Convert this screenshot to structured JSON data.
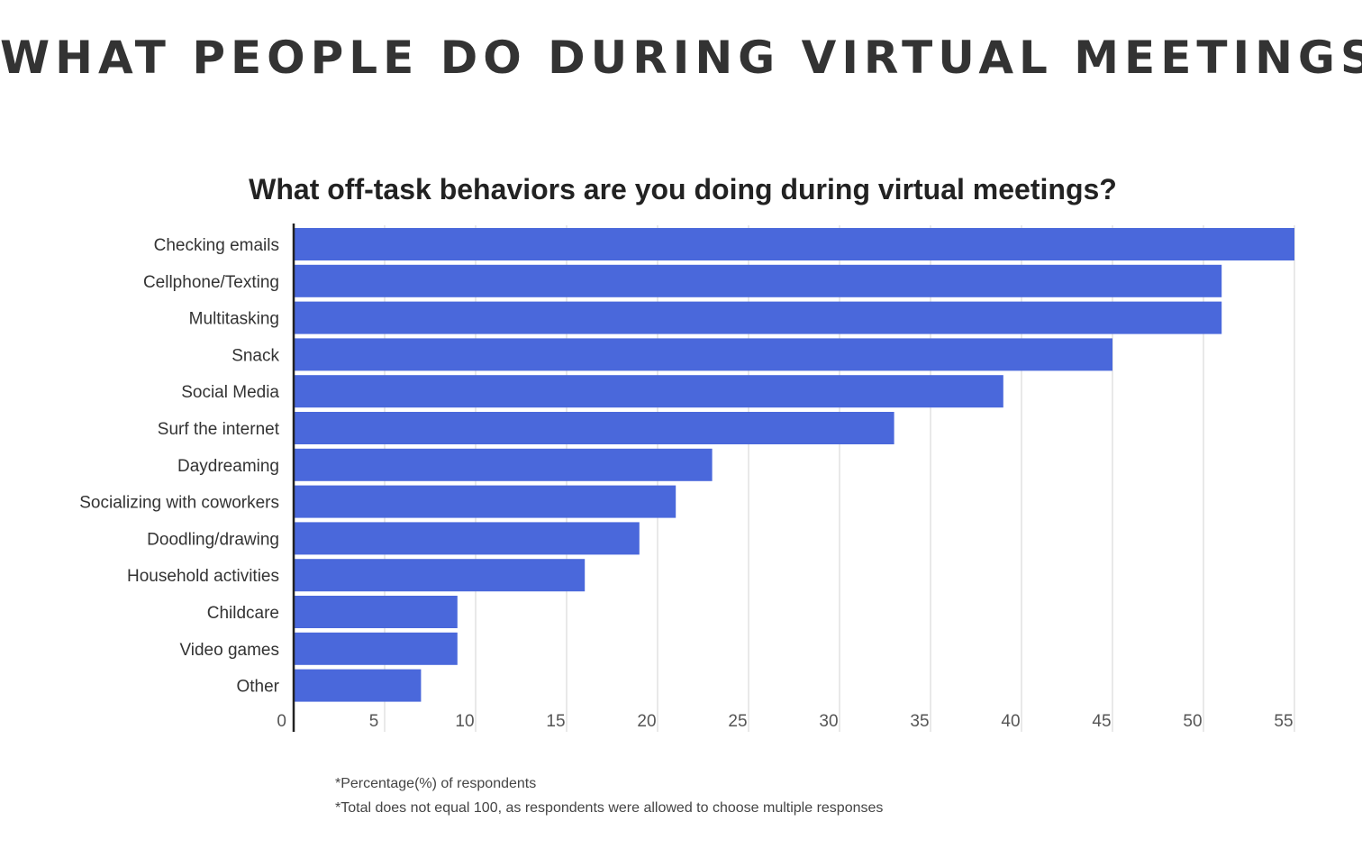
{
  "header": {
    "title": "WHAT PEOPLE DO DURING VIRTUAL MEETINGS"
  },
  "chart_data": {
    "type": "bar",
    "orientation": "horizontal",
    "title": "What off-task behaviors are you doing during virtual meetings?",
    "xlabel": "",
    "ylabel": "",
    "categories": [
      "Checking emails",
      "Cellphone/Texting",
      "Multitasking",
      "Snack",
      "Social Media",
      "Surf the internet",
      "Daydreaming",
      "Socializing with coworkers",
      "Doodling/drawing",
      "Household activities",
      "Childcare",
      "Video games",
      "Other"
    ],
    "values": [
      55,
      51,
      51,
      45,
      39,
      33,
      23,
      21,
      19,
      16,
      9,
      9,
      7
    ],
    "xlim": [
      0,
      55
    ],
    "xticks": [
      "0",
      "5",
      "10",
      "15",
      "20",
      "25",
      "30",
      "35",
      "40",
      "45",
      "50",
      "55"
    ],
    "grid": true,
    "legend": "none",
    "bar_color": "#4A68DB",
    "grid_color": "#E2E2E2",
    "axis_color": "#222222",
    "footnotes": [
      "*Percentage(%) of respondents",
      "*Total does not equal 100, as respondents were allowed to choose multiple responses"
    ]
  }
}
